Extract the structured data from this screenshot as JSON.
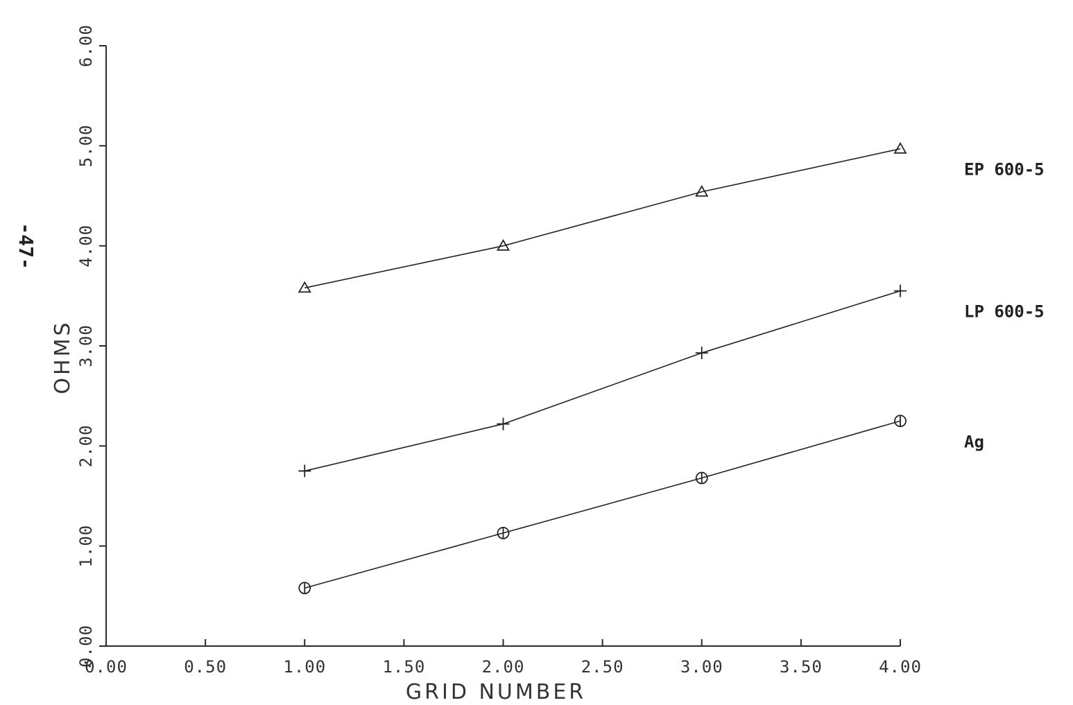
{
  "page_number": "-47-",
  "chart_data": {
    "type": "line",
    "title": "",
    "xlabel": "GRID NUMBER",
    "ylabel": "OHMS",
    "xlim": [
      0,
      4
    ],
    "ylim": [
      0,
      6
    ],
    "x_ticks": [
      "0.00",
      "0.50",
      "1.00",
      "1.50",
      "2.00",
      "2.50",
      "3.00",
      "3.50",
      "4.00"
    ],
    "y_ticks": [
      "0.00",
      "1.00",
      "2.00",
      "3.00",
      "4.00",
      "5.00",
      "6.00"
    ],
    "grid": false,
    "series": [
      {
        "name": "EP 600-5",
        "marker": "triangle",
        "x": [
          1,
          2,
          3,
          4
        ],
        "y": [
          3.58,
          4.0,
          4.54,
          4.97
        ]
      },
      {
        "name": "LP 600-5",
        "marker": "plus",
        "x": [
          1,
          2,
          3,
          4
        ],
        "y": [
          1.75,
          2.22,
          2.93,
          3.55
        ]
      },
      {
        "name": "Ag",
        "marker": "circle",
        "x": [
          1,
          2,
          3,
          4
        ],
        "y": [
          0.58,
          1.13,
          1.68,
          2.25
        ]
      }
    ]
  }
}
